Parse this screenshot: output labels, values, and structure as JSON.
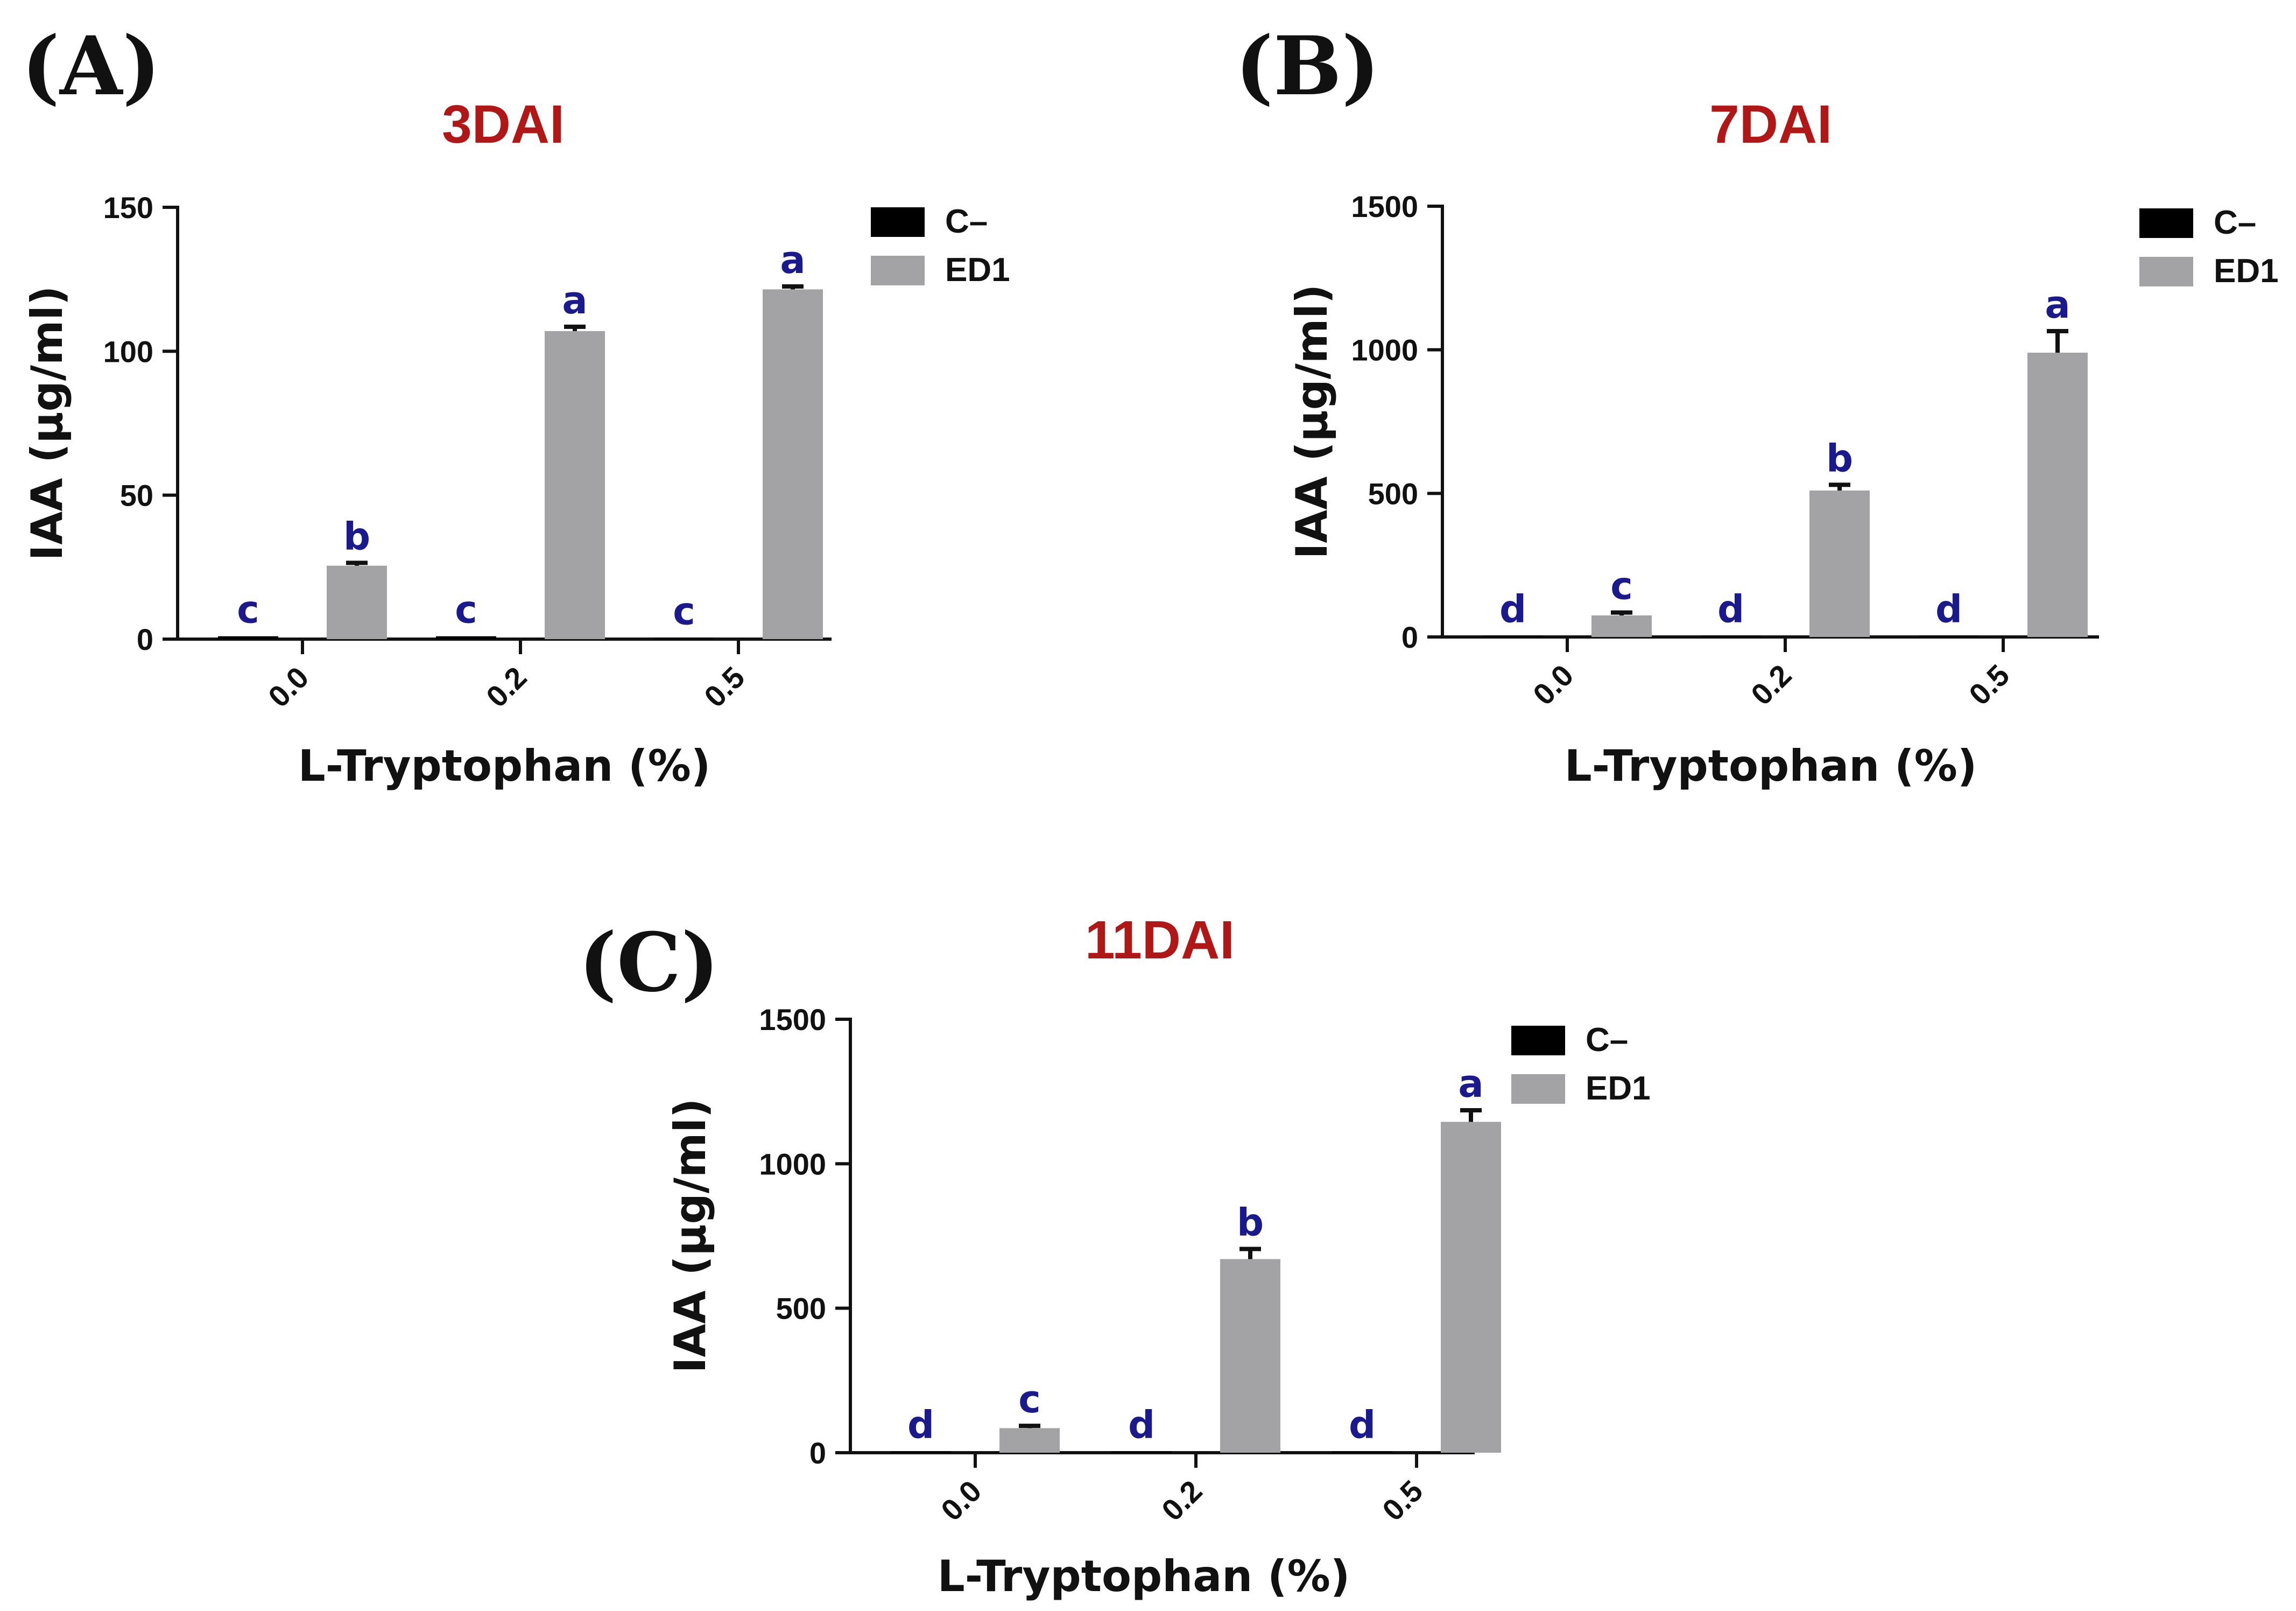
{
  "colors": {
    "control": "#000000",
    "treatment": "#a3a3a6",
    "title": "#b01818",
    "significance": "#1a1a8c",
    "axis": "#111111"
  },
  "chart_data": [
    {
      "type": "bar",
      "panel": "(A)",
      "title": "3DAI",
      "xlabel": "L-Tryptophan (%)",
      "ylabel": "IAA (µg/ml)",
      "categories": [
        "0.0",
        "0.2",
        "0.5"
      ],
      "ylim": [
        0,
        150
      ],
      "yticks": [
        "0",
        "50",
        "100",
        "150"
      ],
      "legend_position": "top-right",
      "series": [
        {
          "name": "C–",
          "values": [
            1,
            1,
            0.5
          ],
          "errors": [
            0,
            0,
            0
          ],
          "labels": [
            "c",
            "c",
            "c"
          ]
        },
        {
          "name": "ED1",
          "values": [
            25.5,
            107,
            121.5
          ],
          "errors": [
            1,
            1.5,
            1
          ],
          "labels": [
            "b",
            "a",
            "a"
          ]
        }
      ]
    },
    {
      "type": "bar",
      "panel": "(B)",
      "title": "7DAI",
      "xlabel": "L-Tryptophan (%)",
      "ylabel": "IAA (µg/ml)",
      "categories": [
        "0.0",
        "0.2",
        "0.5"
      ],
      "ylim": [
        0,
        1500
      ],
      "yticks": [
        "0",
        "500",
        "1000",
        "1500"
      ],
      "legend_position": "top-right",
      "series": [
        {
          "name": "C–",
          "values": [
            5,
            5,
            5
          ],
          "errors": [
            0,
            0,
            0
          ],
          "labels": [
            "d",
            "d",
            "d"
          ]
        },
        {
          "name": "ED1",
          "values": [
            75,
            510,
            990
          ],
          "errors": [
            10,
            20,
            75
          ],
          "labels": [
            "c",
            "b",
            "a"
          ]
        }
      ]
    },
    {
      "type": "bar",
      "panel": "(C)",
      "title": "11DAI",
      "xlabel": "L-Tryptophan (%)",
      "ylabel": "IAA (µg/ml)",
      "categories": [
        "0.0",
        "0.2",
        "0.5"
      ],
      "ylim": [
        0,
        1500
      ],
      "yticks": [
        "0",
        "500",
        "1000",
        "1500"
      ],
      "legend_position": "top-right",
      "series": [
        {
          "name": "C–",
          "values": [
            5,
            5,
            5
          ],
          "errors": [
            0,
            0,
            0
          ],
          "labels": [
            "d",
            "d",
            "d"
          ]
        },
        {
          "name": "ED1",
          "values": [
            85,
            670,
            1145
          ],
          "errors": [
            8,
            35,
            40
          ],
          "labels": [
            "c",
            "b",
            "a"
          ]
        }
      ]
    }
  ]
}
